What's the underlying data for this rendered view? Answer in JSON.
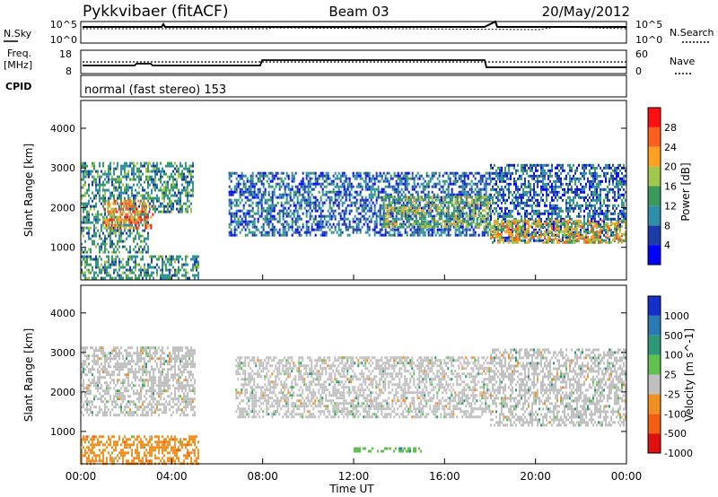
{
  "header": {
    "station": "Pykkvibaer (fitACF)",
    "beam": "Beam 03",
    "date": "20/May/2012"
  },
  "top_panel": {
    "left_label": "N.Sky",
    "right_label": "N.Search",
    "left_ticks": [
      "10^5",
      "10^0"
    ],
    "right_ticks": [
      "10^5",
      "10^0"
    ]
  },
  "freq_panel": {
    "left_label_1": "Freq.",
    "left_label_2": "[MHz]",
    "right_label": "Nave",
    "left_ticks": [
      "18",
      "8"
    ],
    "right_ticks": [
      "60",
      "0"
    ]
  },
  "cpid": {
    "label": "CPID",
    "text": "normal (fast stereo) 153"
  },
  "x_axis": {
    "label": "Time UT",
    "ticks": [
      "00:00",
      "04:00",
      "08:00",
      "12:00",
      "16:00",
      "20:00",
      "00:00"
    ]
  },
  "power_panel": {
    "ylabel": "Slant Range [km]",
    "yticks": [
      "4000",
      "3000",
      "2000",
      "1000"
    ],
    "colorbar_label": "Power [dB]",
    "colorbar_ticks": [
      "28",
      "24",
      "20",
      "16",
      "12",
      "8",
      "4"
    ],
    "colors": [
      "#0000ff",
      "#1e3ca8",
      "#2f8fa8",
      "#3a9a5a",
      "#a0c64a",
      "#ffa020",
      "#ff6020",
      "#ff1010"
    ]
  },
  "velocity_panel": {
    "ylabel": "Slant Range [km]",
    "yticks": [
      "4000",
      "3000",
      "2000",
      "1000"
    ],
    "colorbar_label": "Velocity [m s^-1]",
    "colorbar_ticks": [
      "1000",
      "500",
      "100",
      "25",
      "-25",
      "-100",
      "-500",
      "-1000"
    ],
    "colors": [
      "#1530c8",
      "#2a7ab4",
      "#2e9878",
      "#60c050",
      "#c0c0c0",
      "#f09020",
      "#f06010",
      "#e01010"
    ]
  },
  "chart_data": [
    {
      "type": "heatmap",
      "title": "Power [dB]",
      "xlabel": "Time UT",
      "ylabel": "Slant Range [km]",
      "xlim": [
        0,
        24
      ],
      "ylim": [
        180,
        4700
      ],
      "colorbar_range": [
        0,
        32
      ],
      "bands": [
        {
          "t_start": 0.0,
          "t_end": 3.0,
          "r_low": 900,
          "r_high": 3150,
          "level": 12
        },
        {
          "t_start": 1.0,
          "t_end": 3.2,
          "r_low": 1500,
          "r_high": 2200,
          "level": 22
        },
        {
          "t_start": 3.0,
          "t_end": 4.9,
          "r_low": 1900,
          "r_high": 3150,
          "level": 10
        },
        {
          "t_start": 6.5,
          "t_end": 18.0,
          "r_low": 1300,
          "r_high": 2900,
          "level": 9
        },
        {
          "t_start": 13.3,
          "t_end": 18.0,
          "r_low": 1500,
          "r_high": 2300,
          "level": 14
        },
        {
          "t_start": 18.0,
          "t_end": 24.0,
          "r_low": 1150,
          "r_high": 3100,
          "level": 9
        },
        {
          "t_start": 18.0,
          "t_end": 24.0,
          "r_low": 1150,
          "r_high": 1700,
          "level": 20
        },
        {
          "t_start": 0.0,
          "t_end": 5.2,
          "r_low": 200,
          "r_high": 800,
          "level": 11
        }
      ]
    },
    {
      "type": "heatmap",
      "title": "Velocity [m s^-1]",
      "xlabel": "Time UT",
      "ylabel": "Slant Range [km]",
      "xlim": [
        0,
        24
      ],
      "ylim": [
        180,
        4700
      ],
      "colorbar_range": [
        -1000,
        1000
      ],
      "bands": [
        {
          "t_start": 0.0,
          "t_end": 5.0,
          "r_low": 1400,
          "r_high": 3150,
          "level": 0
        },
        {
          "t_start": 6.8,
          "t_end": 18.0,
          "r_low": 1400,
          "r_high": 2900,
          "level": 0
        },
        {
          "t_start": 18.0,
          "t_end": 24.0,
          "r_low": 1150,
          "r_high": 3100,
          "level": 0
        },
        {
          "t_start": 0.0,
          "t_end": 5.2,
          "r_low": 200,
          "r_high": 900,
          "level": -100
        },
        {
          "t_start": 12.0,
          "t_end": 15.0,
          "r_low": 500,
          "r_high": 600,
          "level": 100
        }
      ]
    }
  ]
}
